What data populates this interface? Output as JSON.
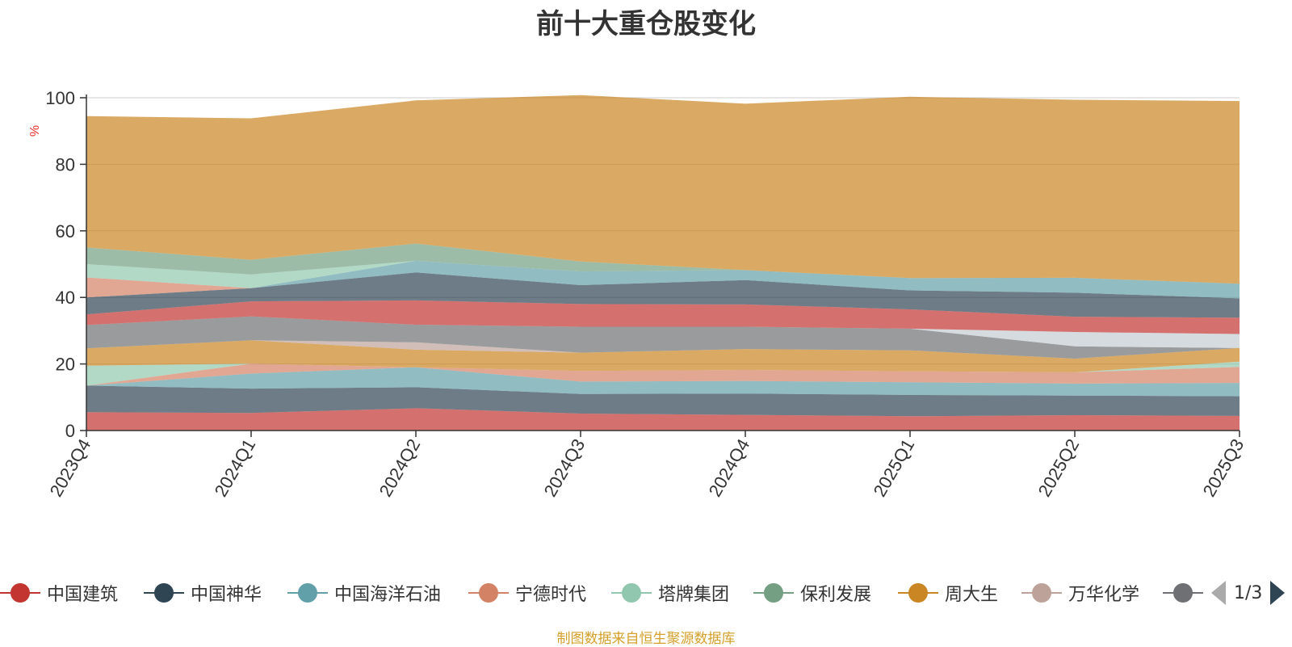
{
  "chart_data": {
    "type": "area",
    "stacked": true,
    "title": "前十大重仓股变化",
    "ylabel": "%",
    "ylim": [
      0,
      100
    ],
    "yticks": [
      0,
      20,
      40,
      60,
      80,
      100
    ],
    "grid": true,
    "legend_position": "bottom",
    "categories": [
      "2023Q4",
      "2024Q1",
      "2024Q2",
      "2024Q3",
      "2024Q4",
      "2025Q1",
      "2025Q2",
      "2025Q3"
    ],
    "series": [
      {
        "name": "中国建筑",
        "color": "#c23531",
        "values": [
          5.5,
          5.3,
          6.7,
          5.1,
          4.7,
          4.3,
          4.6,
          4.4
        ]
      },
      {
        "name": "中国神华",
        "color": "#2f4554",
        "values": [
          8.0,
          7.3,
          6.3,
          5.9,
          6.4,
          6.4,
          5.9,
          5.9
        ]
      },
      {
        "name": "中国海洋石油",
        "color": "#61a0a8",
        "values": [
          0,
          4.5,
          6.0,
          3.7,
          3.8,
          3.8,
          3.6,
          4.0
        ]
      },
      {
        "name": "宁德时代",
        "color": "#d48265",
        "values": [
          0,
          3.0,
          0,
          3.2,
          3.3,
          3.3,
          3.4,
          4.8
        ]
      },
      {
        "name": "塔牌集团",
        "color": "#91c7ae",
        "values": [
          6.0,
          0,
          0,
          0,
          0,
          0,
          0,
          1.6
        ]
      },
      {
        "name": "保利发展",
        "color": "#749f83",
        "values": [
          0,
          0,
          0,
          0,
          0,
          0,
          0,
          0
        ]
      },
      {
        "name": "周大生",
        "color": "#ca8622",
        "values": [
          5.2,
          7.0,
          5.3,
          5.5,
          6.3,
          6.3,
          4.1,
          4.1
        ]
      },
      {
        "name": "万华化学",
        "color": "#bda29a",
        "values": [
          0,
          0,
          2.2,
          0,
          0,
          0,
          0,
          0
        ]
      },
      {
        "name": "",
        "color": "#6e7074",
        "values": [
          7.0,
          7.2,
          5.3,
          7.8,
          6.7,
          6.5,
          3.7,
          0
        ]
      },
      {
        "name": "",
        "color": "#546570",
        "values": [
          0,
          0,
          0,
          0,
          0,
          0,
          0,
          0
        ]
      },
      {
        "name": "",
        "color": "#c4ccd3",
        "values": [
          0,
          0,
          0,
          0,
          0,
          0,
          4.3,
          4.2
        ]
      },
      {
        "name": "",
        "color": "#c23531",
        "values": [
          3.2,
          4.5,
          7.3,
          6.8,
          6.7,
          5.8,
          4.6,
          4.9
        ]
      },
      {
        "name": "",
        "color": "#2f4554",
        "values": [
          5.1,
          4.0,
          8.4,
          5.7,
          7.3,
          5.7,
          7.2,
          5.8
        ]
      },
      {
        "name": "",
        "color": "#61a0a8",
        "values": [
          0,
          0,
          3.5,
          4.1,
          3.0,
          3.7,
          4.5,
          4.4
        ]
      },
      {
        "name": "",
        "color": "#d48265",
        "values": [
          6.0,
          0,
          0,
          0,
          0,
          0,
          0,
          0
        ]
      },
      {
        "name": "",
        "color": "#91c7ae",
        "values": [
          4.0,
          4.1,
          0,
          0,
          0,
          0,
          0,
          0
        ]
      },
      {
        "name": "",
        "color": "#749f83",
        "values": [
          5.0,
          4.4,
          5.2,
          3.0,
          0,
          0,
          0,
          0
        ]
      },
      {
        "name": "",
        "color": "#ca8622",
        "values": [
          39.5,
          42.5,
          43.0,
          50.0,
          50.0,
          54.5,
          53.5,
          54.9
        ]
      }
    ]
  },
  "legend": {
    "visible_items": [
      "中国建筑",
      "中国神华",
      "中国海洋石油",
      "宁德时代",
      "塔牌集团",
      "保利发展",
      "周大生",
      "万华化学",
      ""
    ],
    "page_text": "1/3"
  },
  "source_note": "制图数据来自恒生聚源数据库"
}
